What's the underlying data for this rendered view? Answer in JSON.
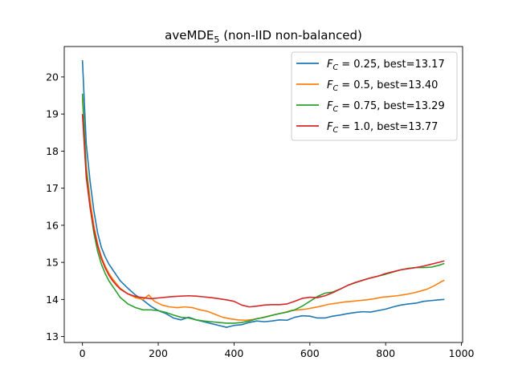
{
  "chart_data": {
    "type": "line",
    "title": "aveMDE",
    "title_subscript": "5",
    "title_suffix": " (non-IID non-balanced)",
    "xlim": [
      -48,
      1003
    ],
    "ylim": [
      12.84,
      20.82
    ],
    "xticks": [
      0,
      200,
      400,
      600,
      800,
      1000
    ],
    "yticks": [
      13,
      14,
      15,
      16,
      17,
      18,
      19,
      20
    ],
    "legend_position": "top-right",
    "series": [
      {
        "name": "F_C = 0.25, best=13.17",
        "legend_var": "F",
        "legend_sub": "C",
        "legend_rest": " = 0.25, best=13.17",
        "color": "#1f77b4",
        "points": [
          [
            0,
            20.45
          ],
          [
            10,
            18.2
          ],
          [
            20,
            17.2
          ],
          [
            30,
            16.4
          ],
          [
            40,
            15.8
          ],
          [
            50,
            15.4
          ],
          [
            60,
            15.15
          ],
          [
            70,
            14.95
          ],
          [
            80,
            14.8
          ],
          [
            90,
            14.65
          ],
          [
            100,
            14.5
          ],
          [
            120,
            14.3
          ],
          [
            140,
            14.12
          ],
          [
            160,
            13.98
          ],
          [
            180,
            13.82
          ],
          [
            200,
            13.7
          ],
          [
            220,
            13.62
          ],
          [
            240,
            13.5
          ],
          [
            260,
            13.45
          ],
          [
            280,
            13.52
          ],
          [
            300,
            13.45
          ],
          [
            320,
            13.4
          ],
          [
            340,
            13.35
          ],
          [
            360,
            13.3
          ],
          [
            380,
            13.25
          ],
          [
            400,
            13.3
          ],
          [
            420,
            13.32
          ],
          [
            440,
            13.38
          ],
          [
            460,
            13.42
          ],
          [
            480,
            13.4
          ],
          [
            500,
            13.42
          ],
          [
            520,
            13.45
          ],
          [
            540,
            13.44
          ],
          [
            560,
            13.52
          ],
          [
            580,
            13.56
          ],
          [
            600,
            13.55
          ],
          [
            620,
            13.5
          ],
          [
            640,
            13.5
          ],
          [
            660,
            13.55
          ],
          [
            680,
            13.58
          ],
          [
            700,
            13.62
          ],
          [
            720,
            13.65
          ],
          [
            740,
            13.67
          ],
          [
            760,
            13.66
          ],
          [
            780,
            13.7
          ],
          [
            800,
            13.74
          ],
          [
            820,
            13.8
          ],
          [
            840,
            13.85
          ],
          [
            860,
            13.88
          ],
          [
            880,
            13.9
          ],
          [
            900,
            13.95
          ],
          [
            920,
            13.97
          ],
          [
            940,
            13.99
          ],
          [
            955,
            14.0
          ]
        ]
      },
      {
        "name": "F_C = 0.5, best=13.40",
        "legend_var": "F",
        "legend_sub": "C",
        "legend_rest": " = 0.5, best=13.40",
        "color": "#ff7f0e",
        "points": [
          [
            0,
            19.45
          ],
          [
            10,
            17.6
          ],
          [
            20,
            16.7
          ],
          [
            30,
            16.0
          ],
          [
            40,
            15.5
          ],
          [
            50,
            15.15
          ],
          [
            60,
            14.9
          ],
          [
            70,
            14.7
          ],
          [
            80,
            14.55
          ],
          [
            90,
            14.42
          ],
          [
            100,
            14.3
          ],
          [
            120,
            14.15
          ],
          [
            140,
            14.05
          ],
          [
            160,
            14.0
          ],
          [
            175,
            14.12
          ],
          [
            190,
            13.95
          ],
          [
            210,
            13.85
          ],
          [
            230,
            13.8
          ],
          [
            250,
            13.78
          ],
          [
            270,
            13.8
          ],
          [
            290,
            13.78
          ],
          [
            310,
            13.72
          ],
          [
            330,
            13.68
          ],
          [
            350,
            13.6
          ],
          [
            370,
            13.52
          ],
          [
            390,
            13.48
          ],
          [
            410,
            13.45
          ],
          [
            430,
            13.44
          ],
          [
            450,
            13.46
          ],
          [
            470,
            13.5
          ],
          [
            490,
            13.55
          ],
          [
            510,
            13.6
          ],
          [
            530,
            13.64
          ],
          [
            550,
            13.7
          ],
          [
            570,
            13.72
          ],
          [
            590,
            13.74
          ],
          [
            610,
            13.78
          ],
          [
            630,
            13.82
          ],
          [
            650,
            13.87
          ],
          [
            670,
            13.9
          ],
          [
            690,
            13.93
          ],
          [
            710,
            13.95
          ],
          [
            730,
            13.97
          ],
          [
            750,
            13.99
          ],
          [
            770,
            14.02
          ],
          [
            790,
            14.06
          ],
          [
            810,
            14.08
          ],
          [
            830,
            14.1
          ],
          [
            850,
            14.13
          ],
          [
            870,
            14.17
          ],
          [
            890,
            14.22
          ],
          [
            910,
            14.28
          ],
          [
            930,
            14.38
          ],
          [
            945,
            14.47
          ],
          [
            955,
            14.52
          ]
        ]
      },
      {
        "name": "F_C = 0.75, best=13.29",
        "legend_var": "F",
        "legend_sub": "C",
        "legend_rest": " = 0.75, best=13.29",
        "color": "#2ca02c",
        "points": [
          [
            0,
            19.55
          ],
          [
            10,
            17.5
          ],
          [
            20,
            16.5
          ],
          [
            30,
            15.8
          ],
          [
            40,
            15.3
          ],
          [
            50,
            14.95
          ],
          [
            60,
            14.7
          ],
          [
            70,
            14.5
          ],
          [
            80,
            14.35
          ],
          [
            90,
            14.2
          ],
          [
            100,
            14.05
          ],
          [
            120,
            13.88
          ],
          [
            140,
            13.78
          ],
          [
            160,
            13.72
          ],
          [
            180,
            13.72
          ],
          [
            200,
            13.7
          ],
          [
            220,
            13.65
          ],
          [
            240,
            13.58
          ],
          [
            260,
            13.52
          ],
          [
            280,
            13.5
          ],
          [
            300,
            13.45
          ],
          [
            320,
            13.42
          ],
          [
            340,
            13.4
          ],
          [
            360,
            13.38
          ],
          [
            380,
            13.36
          ],
          [
            400,
            13.36
          ],
          [
            420,
            13.38
          ],
          [
            440,
            13.42
          ],
          [
            460,
            13.48
          ],
          [
            480,
            13.52
          ],
          [
            500,
            13.57
          ],
          [
            520,
            13.62
          ],
          [
            540,
            13.66
          ],
          [
            560,
            13.72
          ],
          [
            580,
            13.82
          ],
          [
            600,
            13.95
          ],
          [
            620,
            14.08
          ],
          [
            640,
            14.17
          ],
          [
            660,
            14.2
          ],
          [
            680,
            14.28
          ],
          [
            700,
            14.38
          ],
          [
            720,
            14.45
          ],
          [
            740,
            14.52
          ],
          [
            760,
            14.58
          ],
          [
            780,
            14.63
          ],
          [
            800,
            14.68
          ],
          [
            820,
            14.74
          ],
          [
            840,
            14.8
          ],
          [
            860,
            14.84
          ],
          [
            880,
            14.86
          ],
          [
            900,
            14.86
          ],
          [
            920,
            14.87
          ],
          [
            940,
            14.92
          ],
          [
            955,
            14.97
          ]
        ]
      },
      {
        "name": "F_C = 1.0, best=13.77",
        "legend_var": "F",
        "legend_sub": "C",
        "legend_rest": " = 1.0, best=13.77",
        "color": "#d62728",
        "points": [
          [
            0,
            19.0
          ],
          [
            10,
            17.3
          ],
          [
            20,
            16.5
          ],
          [
            30,
            15.9
          ],
          [
            40,
            15.45
          ],
          [
            50,
            15.1
          ],
          [
            60,
            14.85
          ],
          [
            70,
            14.65
          ],
          [
            80,
            14.5
          ],
          [
            90,
            14.38
          ],
          [
            100,
            14.28
          ],
          [
            120,
            14.15
          ],
          [
            140,
            14.08
          ],
          [
            160,
            14.05
          ],
          [
            180,
            14.02
          ],
          [
            200,
            14.04
          ],
          [
            220,
            14.06
          ],
          [
            240,
            14.08
          ],
          [
            260,
            14.09
          ],
          [
            280,
            14.1
          ],
          [
            300,
            14.09
          ],
          [
            320,
            14.07
          ],
          [
            340,
            14.05
          ],
          [
            360,
            14.02
          ],
          [
            380,
            13.99
          ],
          [
            400,
            13.95
          ],
          [
            420,
            13.85
          ],
          [
            440,
            13.8
          ],
          [
            460,
            13.82
          ],
          [
            480,
            13.85
          ],
          [
            500,
            13.86
          ],
          [
            520,
            13.86
          ],
          [
            540,
            13.88
          ],
          [
            560,
            13.95
          ],
          [
            580,
            14.03
          ],
          [
            600,
            14.06
          ],
          [
            620,
            14.05
          ],
          [
            640,
            14.1
          ],
          [
            660,
            14.18
          ],
          [
            680,
            14.28
          ],
          [
            700,
            14.38
          ],
          [
            720,
            14.46
          ],
          [
            740,
            14.52
          ],
          [
            760,
            14.58
          ],
          [
            780,
            14.63
          ],
          [
            800,
            14.7
          ],
          [
            820,
            14.75
          ],
          [
            840,
            14.8
          ],
          [
            860,
            14.83
          ],
          [
            880,
            14.86
          ],
          [
            900,
            14.9
          ],
          [
            920,
            14.95
          ],
          [
            940,
            15.0
          ],
          [
            955,
            15.04
          ]
        ]
      }
    ]
  }
}
